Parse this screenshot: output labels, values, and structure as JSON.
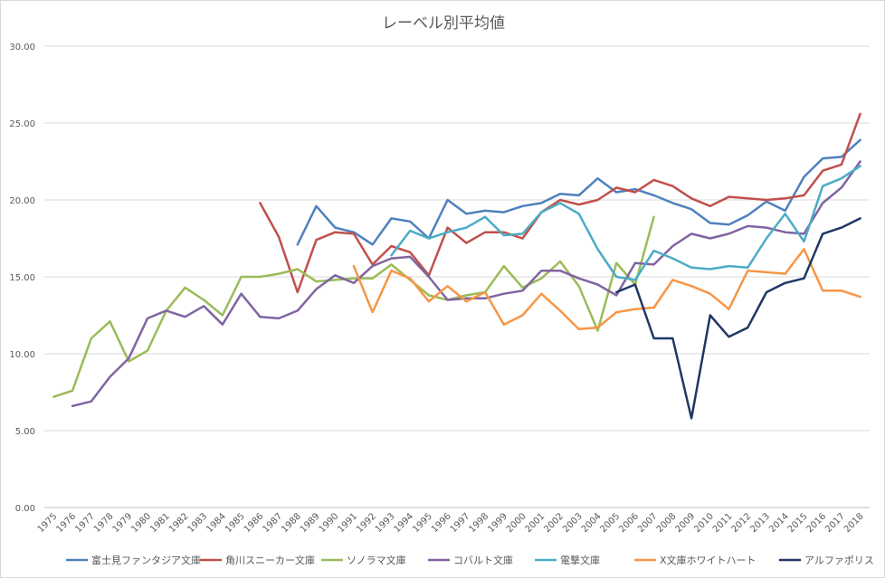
{
  "chart_data": {
    "type": "line",
    "title": "レーベル別平均値",
    "xlabel": "",
    "ylabel": "",
    "ylim": [
      0,
      30
    ],
    "yticks": [
      "0.00",
      "5.00",
      "10.00",
      "15.00",
      "20.00",
      "25.00",
      "30.00"
    ],
    "grid": true,
    "legend_position": "bottom",
    "x": [
      "1975",
      "1976",
      "1977",
      "1978",
      "1979",
      "1980",
      "1981",
      "1982",
      "1983",
      "1984",
      "1985",
      "1986",
      "1987",
      "1988",
      "1989",
      "1990",
      "1991",
      "1992",
      "1993",
      "1994",
      "1995",
      "1996",
      "1997",
      "1998",
      "1999",
      "2000",
      "2001",
      "2002",
      "2003",
      "2004",
      "2005",
      "2006",
      "2007",
      "2008",
      "2009",
      "2010",
      "2011",
      "2012",
      "2013",
      "2014",
      "2015",
      "2016",
      "2017",
      "2018"
    ],
    "series": [
      {
        "name": "富士見ファンタジア文庫",
        "color": "#4f81bd",
        "values": [
          null,
          null,
          null,
          null,
          null,
          null,
          null,
          null,
          null,
          null,
          null,
          null,
          null,
          17.1,
          19.6,
          18.2,
          17.9,
          17.1,
          18.8,
          18.6,
          17.5,
          20.0,
          19.1,
          19.3,
          19.2,
          19.6,
          19.8,
          20.4,
          20.3,
          21.4,
          20.5,
          20.7,
          20.3,
          19.8,
          19.4,
          18.5,
          18.4,
          19.0,
          19.9,
          19.3,
          21.5,
          22.7,
          22.8,
          23.9
        ]
      },
      {
        "name": "角川スニーカー文庫",
        "color": "#c0504d",
        "values": [
          null,
          null,
          null,
          null,
          null,
          null,
          null,
          null,
          null,
          null,
          null,
          19.8,
          17.6,
          14.0,
          17.4,
          17.9,
          17.8,
          15.8,
          17.0,
          16.6,
          15.1,
          18.2,
          17.2,
          17.9,
          17.9,
          17.5,
          19.2,
          20.0,
          19.7,
          20.0,
          20.8,
          20.5,
          21.3,
          20.9,
          20.1,
          19.6,
          20.2,
          20.1,
          20.0,
          20.1,
          20.3,
          21.9,
          22.3,
          25.6
        ]
      },
      {
        "name": "ソノラマ文庫",
        "color": "#9bbb59",
        "values": [
          7.2,
          7.6,
          11.0,
          12.1,
          9.5,
          10.2,
          12.8,
          14.3,
          13.5,
          12.5,
          15.0,
          15.0,
          15.2,
          15.5,
          14.7,
          14.8,
          14.9,
          14.9,
          15.8,
          14.8,
          13.8,
          13.5,
          13.8,
          14.0,
          15.7,
          14.3,
          14.9,
          16.0,
          14.4,
          11.5,
          15.9,
          14.5,
          18.9,
          null,
          null,
          null,
          null,
          null,
          null,
          null,
          null,
          null,
          null,
          null
        ]
      },
      {
        "name": "コバルト文庫",
        "color": "#8064a2",
        "values": [
          null,
          6.6,
          6.9,
          8.5,
          9.7,
          12.3,
          12.8,
          12.4,
          13.1,
          11.9,
          13.9,
          12.4,
          12.3,
          12.8,
          14.2,
          15.1,
          14.6,
          15.7,
          16.2,
          16.3,
          15.0,
          13.5,
          13.6,
          13.6,
          13.9,
          14.1,
          15.4,
          15.4,
          14.9,
          14.5,
          13.8,
          15.9,
          15.8,
          17.0,
          17.8,
          17.5,
          17.8,
          18.3,
          18.2,
          17.9,
          17.8,
          19.8,
          20.8,
          22.5
        ]
      },
      {
        "name": "電撃文庫",
        "color": "#4bacc6",
        "values": [
          null,
          null,
          null,
          null,
          null,
          null,
          null,
          null,
          null,
          null,
          null,
          null,
          null,
          null,
          null,
          null,
          null,
          null,
          16.4,
          18.0,
          17.5,
          17.9,
          18.2,
          18.9,
          17.7,
          17.8,
          19.2,
          19.8,
          19.1,
          16.8,
          15.0,
          14.8,
          16.7,
          16.2,
          15.6,
          15.5,
          15.7,
          15.6,
          17.5,
          19.1,
          17.3,
          20.9,
          21.4,
          22.2
        ]
      },
      {
        "name": "X文庫ホワイトハート",
        "color": "#f79646",
        "values": [
          null,
          null,
          null,
          null,
          null,
          null,
          null,
          null,
          null,
          null,
          null,
          null,
          null,
          null,
          null,
          null,
          15.7,
          12.7,
          15.4,
          14.9,
          13.4,
          14.4,
          13.4,
          14.0,
          11.9,
          12.5,
          13.9,
          12.8,
          11.6,
          11.7,
          12.7,
          12.9,
          13.0,
          14.8,
          14.4,
          13.9,
          12.9,
          15.4,
          15.3,
          15.2,
          16.8,
          14.1,
          14.1,
          13.7
        ]
      },
      {
        "name": "アルファポリス",
        "color": "#1f3864",
        "values": [
          null,
          null,
          null,
          null,
          null,
          null,
          null,
          null,
          null,
          null,
          null,
          null,
          null,
          null,
          null,
          null,
          null,
          null,
          null,
          null,
          null,
          null,
          null,
          null,
          null,
          null,
          null,
          null,
          null,
          null,
          14.0,
          14.5,
          11.0,
          11.0,
          5.8,
          12.5,
          11.1,
          11.7,
          14.0,
          14.6,
          14.9,
          17.8,
          18.2,
          18.8
        ]
      }
    ]
  }
}
